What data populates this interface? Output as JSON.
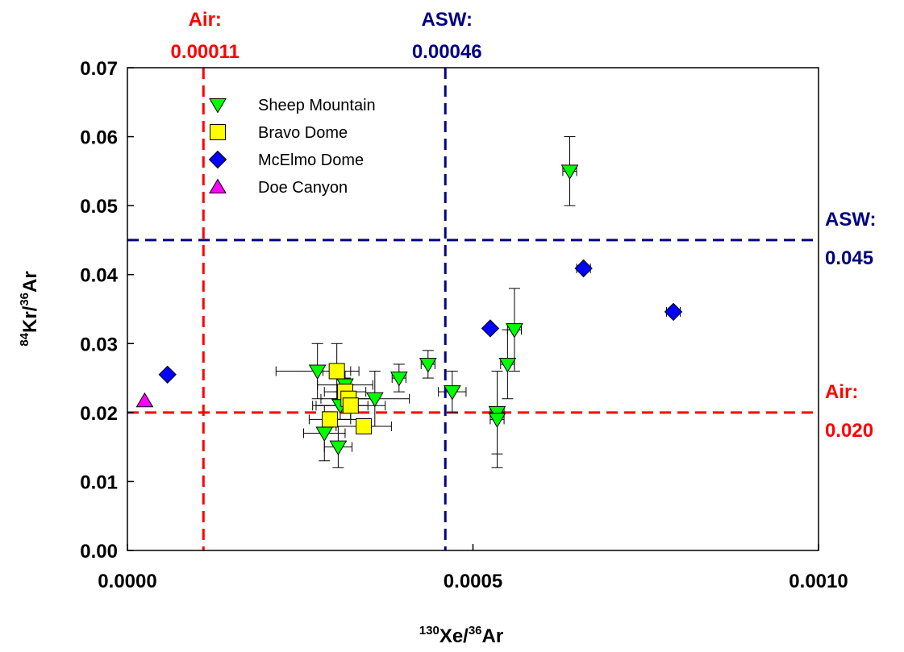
{
  "chart_data": {
    "type": "scatter",
    "xlabel": {
      "sup1": "130",
      "base1": "Xe/",
      "sup2": "36",
      "base2": "Ar"
    },
    "ylabel": {
      "sup1": "84",
      "base1": "Kr/",
      "sup2": "36",
      "base2": "Ar"
    },
    "xlim": [
      0,
      0.001
    ],
    "ylim": [
      0,
      0.07
    ],
    "xticks": [
      {
        "value": 0,
        "label": "0.0000"
      },
      {
        "value": 0.0005,
        "label": "0.0005"
      },
      {
        "value": 0.001,
        "label": "0.0010"
      }
    ],
    "yticks": [
      {
        "value": 0.0,
        "label": "0.00"
      },
      {
        "value": 0.01,
        "label": "0.01"
      },
      {
        "value": 0.02,
        "label": "0.02"
      },
      {
        "value": 0.03,
        "label": "0.03"
      },
      {
        "value": 0.04,
        "label": "0.04"
      },
      {
        "value": 0.05,
        "label": "0.05"
      },
      {
        "value": 0.06,
        "label": "0.06"
      },
      {
        "value": 0.07,
        "label": "0.07"
      }
    ],
    "grid": false,
    "legend_position": "top-left",
    "reference_lines": {
      "vertical": [
        {
          "value": 0.00011,
          "label_name": "Air:",
          "label_value": "0.00011",
          "color": "#ff0000"
        },
        {
          "value": 0.00046,
          "label_name": "ASW:",
          "label_value": "0.00046",
          "color": "#000080"
        }
      ],
      "horizontal": [
        {
          "value": 0.045,
          "label_name": "ASW:",
          "label_value": "0.045",
          "color": "#000080"
        },
        {
          "value": 0.02,
          "label_name": "Air:",
          "label_value": "0.020",
          "color": "#ff0000"
        }
      ]
    },
    "series": [
      {
        "name": "Sheep Mountain",
        "marker": "triangle-down",
        "color": "#00ff00",
        "points": [
          {
            "x": 0.00064,
            "y": 0.055,
            "yerr": 0.005,
            "xerr": 1e-05
          },
          {
            "x": 0.00056,
            "y": 0.032,
            "yerr": 0.006,
            "xerr": 1e-05
          },
          {
            "x": 0.00055,
            "y": 0.027,
            "yerr": 0.005,
            "xerr": 1e-05
          },
          {
            "x": 0.000535,
            "y": 0.02,
            "yerr": 0.006,
            "xerr": 1e-05
          },
          {
            "x": 0.000535,
            "y": 0.019,
            "yerr": 0.007,
            "xerr": 1e-05
          },
          {
            "x": 0.00047,
            "y": 0.023,
            "yerr": 0.003,
            "xerr": 2e-05
          },
          {
            "x": 0.000435,
            "y": 0.027,
            "yerr": 0.002,
            "xerr": 1e-05
          },
          {
            "x": 0.000393,
            "y": 0.025,
            "yerr": 0.002,
            "xerr": 1e-05
          },
          {
            "x": 0.000358,
            "y": 0.022,
            "yerr": 0.004,
            "xerr": 5e-05
          },
          {
            "x": 0.000275,
            "y": 0.026,
            "yerr": 0.004,
            "xerr": 6e-05
          },
          {
            "x": 0.000315,
            "y": 0.024,
            "yerr": 0.002,
            "xerr": 4e-05
          },
          {
            "x": 0.000308,
            "y": 0.021,
            "yerr": 0.002,
            "xerr": 4e-05
          },
          {
            "x": 0.000285,
            "y": 0.017,
            "yerr": 0.004,
            "xerr": 3e-05
          },
          {
            "x": 0.000305,
            "y": 0.015,
            "yerr": 0.003,
            "xerr": 2e-05
          }
        ]
      },
      {
        "name": "Bravo Dome",
        "marker": "square",
        "color": "#ffff00",
        "points": [
          {
            "x": 0.000303,
            "y": 0.026,
            "yerr": 0.004,
            "xerr": 2e-05
          },
          {
            "x": 0.000315,
            "y": 0.023,
            "yerr": 0.002,
            "xerr": 3e-05
          },
          {
            "x": 0.00032,
            "y": 0.022,
            "yerr": 0.002,
            "xerr": 4e-05
          },
          {
            "x": 0.000323,
            "y": 0.021,
            "yerr": 0.002,
            "xerr": 5e-05
          },
          {
            "x": 0.000293,
            "y": 0.019,
            "yerr": 0.001,
            "xerr": 3e-05
          },
          {
            "x": 0.000342,
            "y": 0.018,
            "yerr": 0.001,
            "xerr": 4e-05
          }
        ]
      },
      {
        "name": "McElmo Dome",
        "marker": "diamond",
        "color": "#0000ff",
        "points": [
          {
            "x": 5.8e-05,
            "y": 0.0255
          },
          {
            "x": 0.000525,
            "y": 0.0322
          },
          {
            "x": 0.00066,
            "y": 0.0409,
            "xerr": 1e-05
          },
          {
            "x": 0.00079,
            "y": 0.0346,
            "xerr": 1e-05
          }
        ]
      },
      {
        "name": "Doe Canyon",
        "marker": "triangle-up",
        "color": "#ff00ff",
        "points": [
          {
            "x": 2.5e-05,
            "y": 0.0217
          }
        ]
      }
    ]
  }
}
